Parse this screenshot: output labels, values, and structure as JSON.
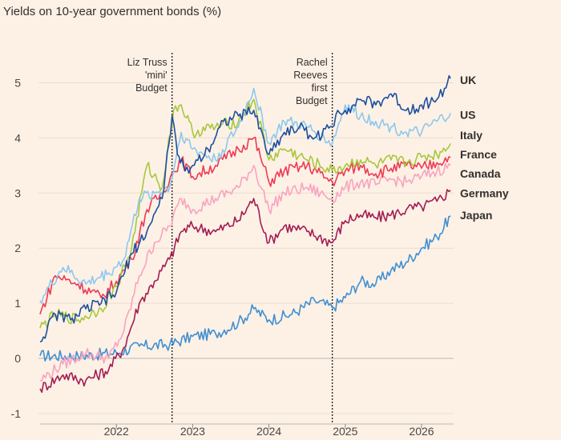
{
  "chart_data": {
    "type": "line",
    "title": "Yields on 10-year government bonds (%)",
    "ylim": [
      -1,
      5.5
    ],
    "xlim": [
      2021.0,
      2026.42
    ],
    "y_ticks": [
      "-1",
      "0",
      "1",
      "2",
      "3",
      "4",
      "5"
    ],
    "x_ticks": [
      {
        "value": 2022,
        "label": "2022"
      },
      {
        "value": 2023,
        "label": "2023"
      },
      {
        "value": 2024,
        "label": "2024"
      },
      {
        "value": 2025,
        "label": "2025"
      },
      {
        "value": 2026,
        "label": "2026"
      }
    ],
    "grid": "horizontal",
    "annotations": [
      {
        "x": 2022.73,
        "lines": [
          "Liz Truss",
          "'mini'",
          "Budget"
        ]
      },
      {
        "x": 2024.83,
        "lines": [
          "Rachel",
          "Reeves",
          "first",
          "Budget"
        ]
      }
    ],
    "series": [
      {
        "name": "Japan",
        "color": "#3f8fd1",
        "label_y": 2.6,
        "x": [
          2021.0,
          2021.5,
          2022.0,
          2022.3,
          2022.7,
          2023.0,
          2023.3,
          2023.6,
          2023.8,
          2024.0,
          2024.3,
          2024.6,
          2024.83,
          2025.0,
          2025.2,
          2025.4,
          2025.6,
          2025.8,
          2026.0,
          2026.2,
          2026.38
        ],
        "y": [
          0.05,
          0.04,
          0.1,
          0.22,
          0.25,
          0.4,
          0.45,
          0.65,
          0.9,
          0.7,
          0.8,
          1.05,
          0.92,
          1.1,
          1.4,
          1.35,
          1.6,
          1.75,
          2.0,
          2.2,
          2.58
        ]
      },
      {
        "name": "Germany",
        "color": "#a31d54",
        "label_y": 3.0,
        "x": [
          2021.0,
          2021.3,
          2021.6,
          2021.9,
          2022.1,
          2022.3,
          2022.5,
          2022.7,
          2022.85,
          2023.0,
          2023.3,
          2023.6,
          2023.8,
          2024.0,
          2024.2,
          2024.5,
          2024.83,
          2025.0,
          2025.2,
          2025.4,
          2025.6,
          2025.8,
          2026.0,
          2026.2,
          2026.38
        ],
        "y": [
          -0.55,
          -0.3,
          -0.4,
          -0.2,
          0.2,
          1.0,
          1.4,
          1.8,
          2.3,
          2.4,
          2.3,
          2.5,
          2.9,
          2.1,
          2.4,
          2.3,
          2.1,
          2.5,
          2.6,
          2.55,
          2.6,
          2.7,
          2.75,
          2.85,
          3.05
        ]
      },
      {
        "name": "Canada",
        "color": "#f9a3bf",
        "label_y": 3.35,
        "x": [
          2021.0,
          2021.3,
          2021.6,
          2021.9,
          2022.1,
          2022.3,
          2022.5,
          2022.7,
          2022.85,
          2023.0,
          2023.3,
          2023.6,
          2023.8,
          2024.0,
          2024.2,
          2024.5,
          2024.83,
          2025.0,
          2025.2,
          2025.4,
          2025.6,
          2025.8,
          2026.0,
          2026.2,
          2026.38
        ],
        "y": [
          -0.4,
          -0.1,
          0.1,
          0.0,
          0.5,
          1.5,
          2.1,
          2.4,
          2.9,
          2.7,
          2.9,
          3.1,
          3.5,
          2.7,
          3.0,
          3.1,
          2.9,
          3.1,
          3.2,
          3.15,
          3.25,
          3.2,
          3.3,
          3.4,
          3.5
        ]
      },
      {
        "name": "France",
        "color": "#ee3a54",
        "label_y": 3.7,
        "x": [
          2021.0,
          2021.2,
          2021.5,
          2021.8,
          2022.0,
          2022.2,
          2022.4,
          2022.6,
          2022.75,
          2022.85,
          2023.0,
          2023.3,
          2023.6,
          2023.8,
          2024.0,
          2024.2,
          2024.5,
          2024.83,
          2025.0,
          2025.2,
          2025.4,
          2025.6,
          2025.8,
          2026.0,
          2026.2,
          2026.38
        ],
        "y": [
          0.8,
          1.5,
          1.35,
          1.1,
          1.4,
          1.8,
          2.7,
          3.0,
          3.4,
          3.6,
          3.3,
          3.5,
          3.8,
          4.0,
          3.2,
          3.4,
          3.5,
          3.2,
          3.4,
          3.5,
          3.35,
          3.45,
          3.5,
          3.45,
          3.55,
          3.65
        ]
      },
      {
        "name": "Italy",
        "color": "#a9c73c",
        "label_y": 4.05,
        "x": [
          2021.0,
          2021.2,
          2021.5,
          2021.8,
          2022.0,
          2022.2,
          2022.4,
          2022.6,
          2022.75,
          2022.85,
          2023.0,
          2023.3,
          2023.6,
          2023.8,
          2024.0,
          2024.2,
          2024.5,
          2024.83,
          2025.0,
          2025.2,
          2025.4,
          2025.6,
          2025.8,
          2026.0,
          2026.2,
          2026.38
        ],
        "y": [
          0.55,
          0.8,
          0.7,
          0.9,
          1.3,
          2.0,
          3.5,
          3.1,
          4.5,
          4.6,
          4.1,
          4.2,
          4.3,
          4.7,
          3.6,
          3.8,
          3.6,
          3.4,
          3.5,
          3.6,
          3.5,
          3.6,
          3.55,
          3.65,
          3.7,
          3.9
        ]
      },
      {
        "name": "US",
        "color": "#8dc8ee",
        "label_y": 4.42,
        "x": [
          2021.0,
          2021.3,
          2021.6,
          2021.9,
          2022.1,
          2022.3,
          2022.5,
          2022.7,
          2022.85,
          2023.0,
          2023.3,
          2023.6,
          2023.8,
          2024.0,
          2024.2,
          2024.5,
          2024.83,
          2025.0,
          2025.2,
          2025.4,
          2025.6,
          2025.8,
          2026.0,
          2026.2,
          2026.38
        ],
        "y": [
          1.05,
          1.65,
          1.35,
          1.55,
          1.8,
          2.9,
          3.0,
          3.1,
          4.1,
          3.8,
          3.6,
          4.2,
          4.9,
          3.9,
          4.3,
          4.2,
          3.9,
          4.6,
          4.4,
          4.3,
          4.2,
          4.1,
          4.1,
          4.3,
          4.45
        ]
      },
      {
        "name": "UK",
        "color": "#1e4f9e",
        "label_y": 5.05,
        "x": [
          2021.0,
          2021.2,
          2021.4,
          2021.6,
          2021.8,
          2022.0,
          2022.2,
          2022.4,
          2022.6,
          2022.73,
          2022.8,
          2022.9,
          2023.0,
          2023.2,
          2023.4,
          2023.6,
          2023.8,
          2024.0,
          2024.2,
          2024.4,
          2024.6,
          2024.83,
          2024.9,
          2025.0,
          2025.2,
          2025.4,
          2025.6,
          2025.8,
          2026.0,
          2026.2,
          2026.3,
          2026.38
        ],
        "y": [
          0.3,
          0.8,
          0.7,
          0.9,
          1.0,
          1.2,
          1.9,
          2.3,
          2.9,
          4.4,
          3.7,
          3.4,
          3.5,
          3.8,
          4.3,
          4.4,
          4.5,
          3.7,
          4.1,
          4.2,
          4.0,
          4.2,
          4.5,
          4.5,
          4.7,
          4.6,
          4.8,
          4.5,
          4.6,
          4.7,
          4.9,
          5.08
        ]
      }
    ]
  }
}
